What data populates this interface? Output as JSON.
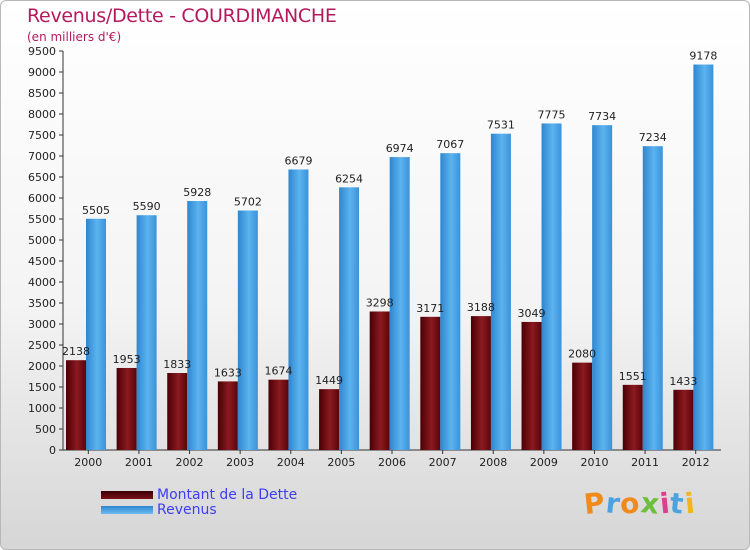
{
  "header": {
    "title": "Revenus/Dette - COURDIMANCHE",
    "subtitle": "(en milliers d'€)"
  },
  "legend": [
    {
      "label": "Montant de la Dette",
      "color": "#6e0a10"
    },
    {
      "label": "Revenus",
      "color": "#3f9fe5"
    }
  ],
  "logo": {
    "text": "Proxiti",
    "letters": [
      "P",
      "r",
      "o",
      "x",
      "i",
      "t",
      "i"
    ],
    "colors": [
      "#f08a1c",
      "#4aa3df",
      "#f08a1c",
      "#6cbf3a",
      "#e03f8f",
      "#4aa3df",
      "#f0b61c"
    ]
  },
  "chart_data": {
    "type": "bar",
    "categories": [
      "2000",
      "2001",
      "2002",
      "2003",
      "2004",
      "2005",
      "2006",
      "2007",
      "2008",
      "2009",
      "2010",
      "2011",
      "2012"
    ],
    "series": [
      {
        "name": "Montant de la Dette",
        "color": "#6e0a10",
        "values": [
          2138,
          1953,
          1833,
          1633,
          1674,
          1449,
          3298,
          3171,
          3188,
          3049,
          2080,
          1551,
          1433
        ]
      },
      {
        "name": "Revenus",
        "color": "#3f9fe5",
        "values": [
          5505,
          5590,
          5928,
          5702,
          6679,
          6254,
          6974,
          7067,
          7531,
          7775,
          7734,
          7234,
          9178
        ]
      }
    ],
    "title": "Revenus/Dette - COURDIMANCHE",
    "ylabel": "(en milliers d'€)",
    "ylim": [
      0,
      9500
    ],
    "ytick_step": 500,
    "grid": false,
    "legend_position": "bottom-left"
  }
}
